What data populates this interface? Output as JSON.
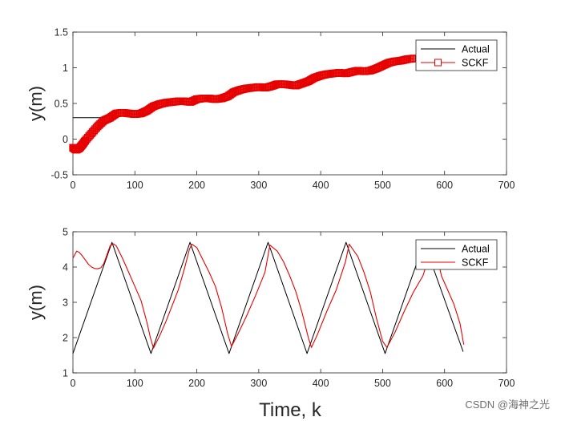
{
  "colors": {
    "actual": "#000000",
    "estimate": "#e60000",
    "axis": "#262626",
    "background": "#ffffff"
  },
  "watermark": "CSDN @海神之光",
  "chart_data": [
    {
      "type": "line",
      "ylabel": "y(m)",
      "xlabel": "",
      "xlim": [
        0,
        700
      ],
      "ylim": [
        -0.5,
        1.5
      ],
      "xticks": [
        0,
        100,
        200,
        300,
        400,
        500,
        600,
        700
      ],
      "yticks": [
        -0.5,
        0,
        0.5,
        1,
        1.5
      ],
      "xtick_labels": [
        "0",
        "100",
        "200",
        "300",
        "400",
        "500",
        "600",
        "700"
      ],
      "ytick_labels": [
        "-0.5",
        "0",
        "0.5",
        "1",
        "1.5"
      ],
      "legend": {
        "position": "top-right",
        "entries": [
          "Actual",
          "SCKF"
        ],
        "estimate_marker": "square"
      },
      "series": [
        {
          "name": "Actual",
          "style": "line",
          "x": [
            0,
            45
          ],
          "y": [
            0.3,
            0.3
          ]
        },
        {
          "name": "SCKF",
          "style": "square-markers",
          "x": [
            0,
            5,
            10,
            15,
            20,
            30,
            40,
            50,
            60,
            70,
            80,
            90,
            100,
            110,
            120,
            130,
            140,
            150,
            160,
            170,
            180,
            190,
            200,
            210,
            220,
            230,
            240,
            250,
            260,
            270,
            280,
            290,
            300,
            310,
            320,
            330,
            340,
            350,
            360,
            370,
            380,
            390,
            400,
            410,
            420,
            430,
            440,
            450,
            460,
            470,
            480,
            490,
            500,
            510,
            520,
            530,
            540,
            550
          ],
          "y": [
            -0.12,
            -0.15,
            -0.13,
            -0.08,
            -0.02,
            0.08,
            0.18,
            0.26,
            0.3,
            0.36,
            0.37,
            0.36,
            0.35,
            0.36,
            0.4,
            0.46,
            0.49,
            0.51,
            0.52,
            0.53,
            0.53,
            0.52,
            0.56,
            0.57,
            0.57,
            0.56,
            0.57,
            0.6,
            0.66,
            0.69,
            0.71,
            0.72,
            0.73,
            0.72,
            0.74,
            0.77,
            0.77,
            0.76,
            0.75,
            0.78,
            0.81,
            0.86,
            0.89,
            0.91,
            0.92,
            0.93,
            0.92,
            0.94,
            0.96,
            0.95,
            0.96,
            0.99,
            1.03,
            1.07,
            1.09,
            1.1,
            1.12,
            1.13
          ]
        }
      ]
    },
    {
      "type": "line",
      "ylabel": "y(m)",
      "xlabel": "Time, k",
      "xlim": [
        0,
        700
      ],
      "ylim": [
        1,
        5
      ],
      "xticks": [
        0,
        100,
        200,
        300,
        400,
        500,
        600,
        700
      ],
      "yticks": [
        1,
        2,
        3,
        4,
        5
      ],
      "xtick_labels": [
        "0",
        "100",
        "200",
        "300",
        "400",
        "500",
        "600",
        "700"
      ],
      "ytick_labels": [
        "1",
        "2",
        "3",
        "4",
        "5"
      ],
      "legend": {
        "position": "top-right",
        "entries": [
          "Actual",
          "SCKF"
        ],
        "estimate_marker": "none"
      },
      "series": [
        {
          "name": "Actual",
          "style": "line",
          "x": [
            0,
            63,
            126,
            189,
            252,
            315,
            378,
            441,
            504,
            567,
            630
          ],
          "y": [
            1.55,
            4.7,
            1.55,
            4.7,
            1.55,
            4.7,
            1.55,
            4.7,
            1.55,
            4.7,
            1.6
          ]
        },
        {
          "name": "SCKF",
          "style": "line",
          "x": [
            0,
            3,
            6,
            10,
            15,
            20,
            25,
            30,
            35,
            40,
            45,
            50,
            55,
            60,
            65,
            70,
            80,
            90,
            100,
            110,
            120,
            125,
            130,
            140,
            150,
            160,
            170,
            180,
            188,
            192,
            200,
            210,
            220,
            230,
            240,
            250,
            256,
            265,
            280,
            295,
            310,
            318,
            330,
            340,
            350,
            360,
            370,
            380,
            385,
            395,
            410,
            425,
            440,
            446,
            460,
            470,
            480,
            490,
            500,
            507,
            520,
            535,
            550,
            565,
            575,
            585,
            595,
            605,
            615,
            625,
            631
          ],
          "y": [
            4.25,
            4.35,
            4.45,
            4.42,
            4.32,
            4.2,
            4.08,
            4.0,
            3.96,
            3.95,
            3.98,
            4.1,
            4.35,
            4.6,
            4.66,
            4.6,
            4.25,
            3.85,
            3.45,
            3.05,
            2.4,
            2.0,
            1.7,
            2.05,
            2.45,
            2.9,
            3.35,
            3.95,
            4.5,
            4.65,
            4.55,
            4.2,
            3.85,
            3.45,
            2.85,
            2.1,
            1.75,
            2.05,
            2.6,
            3.2,
            3.85,
            4.62,
            4.45,
            4.15,
            3.75,
            3.3,
            2.7,
            2.0,
            1.72,
            2.1,
            2.75,
            3.35,
            4.15,
            4.65,
            4.3,
            3.85,
            3.3,
            2.55,
            1.9,
            1.72,
            2.15,
            2.75,
            3.3,
            3.75,
            4.3,
            4.55,
            3.75,
            3.35,
            2.95,
            2.4,
            1.8
          ]
        }
      ]
    }
  ]
}
